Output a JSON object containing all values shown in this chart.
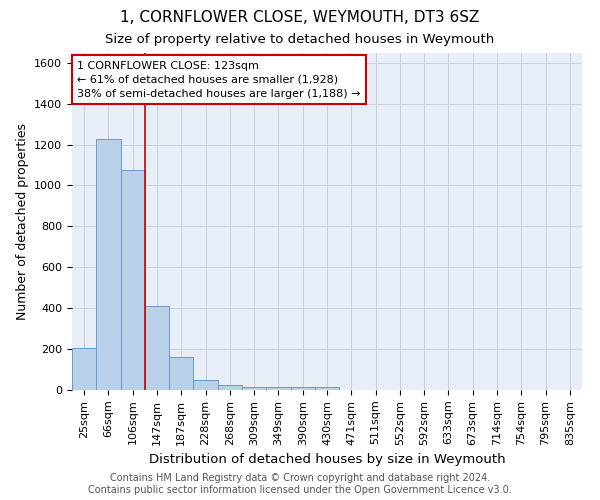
{
  "title": "1, CORNFLOWER CLOSE, WEYMOUTH, DT3 6SZ",
  "subtitle": "Size of property relative to detached houses in Weymouth",
  "xlabel": "Distribution of detached houses by size in Weymouth",
  "ylabel": "Number of detached properties",
  "bar_labels": [
    "25sqm",
    "66sqm",
    "106sqm",
    "147sqm",
    "187sqm",
    "228sqm",
    "268sqm",
    "309sqm",
    "349sqm",
    "390sqm",
    "430sqm",
    "471sqm",
    "511sqm",
    "552sqm",
    "592sqm",
    "633sqm",
    "673sqm",
    "714sqm",
    "754sqm",
    "795sqm",
    "835sqm"
  ],
  "bar_values": [
    205,
    1225,
    1075,
    410,
    160,
    50,
    25,
    15,
    15,
    15,
    15,
    0,
    0,
    0,
    0,
    0,
    0,
    0,
    0,
    0,
    0
  ],
  "bar_color": "#b8d0e8",
  "bar_edge_color": "#6699cc",
  "ylim": [
    0,
    1650
  ],
  "yticks": [
    0,
    200,
    400,
    600,
    800,
    1000,
    1200,
    1400,
    1600
  ],
  "grid_color": "#ccccdd",
  "bg_color": "#e8eef8",
  "red_line_x": 2.5,
  "annotation_line1": "1 CORNFLOWER CLOSE: 123sqm",
  "annotation_line2": "← 61% of detached houses are smaller (1,928)",
  "annotation_line3": "38% of semi-detached houses are larger (1,188) →",
  "annotation_box_color": "#ffffff",
  "annotation_border_color": "#cc0000",
  "footer_line1": "Contains HM Land Registry data © Crown copyright and database right 2024.",
  "footer_line2": "Contains public sector information licensed under the Open Government Licence v3.0.",
  "title_fontsize": 11,
  "subtitle_fontsize": 9.5,
  "axis_label_fontsize": 9,
  "tick_fontsize": 8,
  "annotation_fontsize": 8,
  "footer_fontsize": 7
}
